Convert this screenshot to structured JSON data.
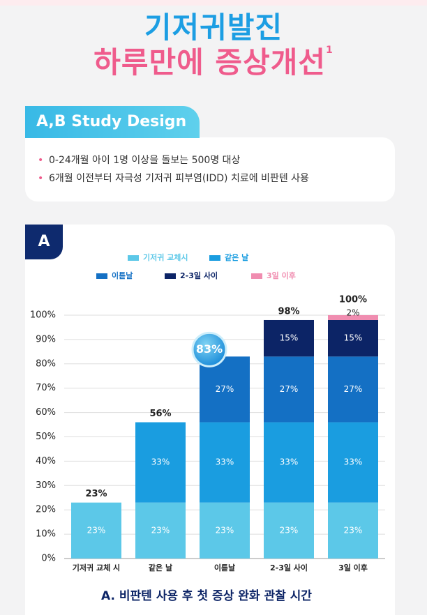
{
  "header": {
    "title_line1": "기저귀발진",
    "title_line2": "하루만에 증상개선",
    "title_note": "1"
  },
  "study": {
    "heading": "A,B Study Design",
    "bullets": [
      "0-24개월 아이 1명 이상을 돌보는 500명 대상",
      "6개월 이전부터 자극성 기저귀 피부염(IDD) 치료에 비판텐 사용"
    ]
  },
  "panel_label": "A",
  "chart_data": {
    "type": "stacked_bar",
    "title": "A. 비판텐 사용 후 첫 증상 완화 관찰 시간",
    "categories": [
      "기저귀 교체 시",
      "같은 날",
      "이튿날",
      "2-3일 사이",
      "3일 이후"
    ],
    "series": [
      {
        "name": "기저귀 교체시",
        "color": "#5cc8e8",
        "values": [
          23,
          23,
          23,
          23,
          23
        ],
        "value_labels": [
          "23%",
          "23%",
          "23%",
          "23%",
          "23%"
        ]
      },
      {
        "name": "같은 날",
        "color": "#1a9de0",
        "values": [
          null,
          33,
          33,
          33,
          33
        ],
        "value_labels": [
          null,
          "33%",
          "33%",
          "33%",
          "33%"
        ]
      },
      {
        "name": "이튿날",
        "color": "#1470c4",
        "values": [
          null,
          null,
          27,
          27,
          27
        ],
        "value_labels": [
          null,
          null,
          "27%",
          "27%",
          "27%"
        ]
      },
      {
        "name": "2-3일 사이",
        "color": "#0c2466",
        "values": [
          null,
          null,
          null,
          15,
          15
        ],
        "value_labels": [
          null,
          null,
          null,
          "15%",
          "15%"
        ]
      },
      {
        "name": "3일 이후",
        "color": "#f08db0",
        "values": [
          null,
          null,
          null,
          null,
          2
        ],
        "value_labels": [
          null,
          null,
          null,
          null,
          "2%"
        ]
      }
    ],
    "totals": [
      23,
      56,
      83,
      98,
      100
    ],
    "total_labels": [
      "23%",
      "56%",
      "83%",
      "98%",
      "100%"
    ],
    "highlight_total": 2,
    "ylim": [
      0,
      100
    ],
    "yticks": [
      {
        "value": 0,
        "label": "0%"
      },
      {
        "value": 10,
        "label": "10%"
      },
      {
        "value": 20,
        "label": "20%"
      },
      {
        "value": 30,
        "label": "30%"
      },
      {
        "value": 40,
        "label": "40%"
      },
      {
        "value": 50,
        "label": "50%"
      },
      {
        "value": 60,
        "label": "60%"
      },
      {
        "value": 70,
        "label": "70%"
      },
      {
        "value": 80,
        "label": "80%"
      },
      {
        "value": 90,
        "label": "90%"
      },
      {
        "value": 100,
        "label": "100%"
      }
    ],
    "grid": true
  }
}
